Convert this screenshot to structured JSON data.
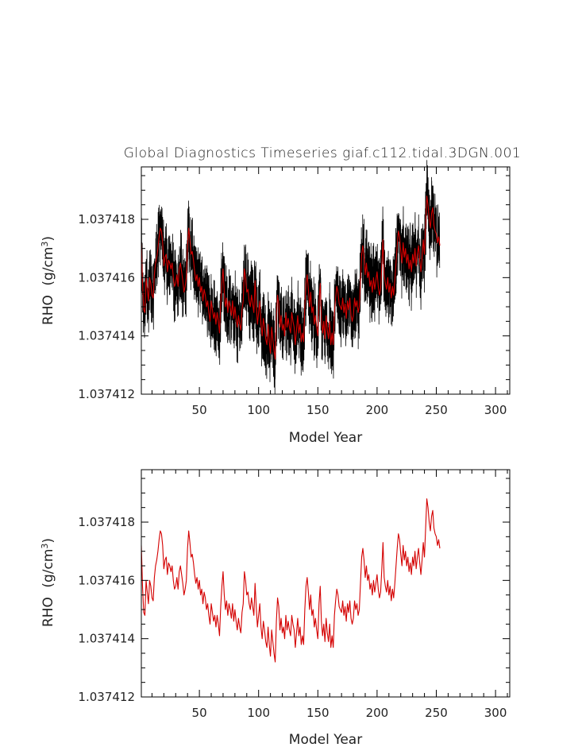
{
  "title": "Global Diagnostics Timeseries giaf.c112.tidal.3DGN.001",
  "chart_data": [
    {
      "type": "line",
      "xlabel": "Model Year",
      "ylabel": "RHO",
      "ylabel_units_base": "(g/cm",
      "ylabel_units_sup": "3",
      "ylabel_units_close": ")",
      "xlim": [
        1,
        312
      ],
      "ylim": [
        1.037412,
        1.0374198
      ],
      "x_ticks": [
        50,
        100,
        150,
        200,
        250,
        300
      ],
      "x_tick_labels": [
        "50",
        "100",
        "150",
        "200",
        "250",
        "300"
      ],
      "y_ticks": [
        1.037412,
        1.037414,
        1.037416,
        1.037418
      ],
      "y_tick_labels": [
        "1.037412",
        "1.037414",
        "1.037416",
        "1.037418"
      ],
      "series": [
        {
          "color": "#000000",
          "kind": "monthly"
        },
        {
          "color": "#d40000",
          "kind": "annual"
        }
      ],
      "annual_x_start": 1,
      "annual_values": [
        1.0374172,
        1.0374158,
        1.0374149,
        1.0374148,
        1.037416,
        1.0374156,
        1.0374152,
        1.037416,
        1.0374158,
        1.0374154,
        1.0374153,
        1.0374161,
        1.0374165,
        1.0374167,
        1.037417,
        1.0374174,
        1.0374177,
        1.0374176,
        1.0374172,
        1.0374164,
        1.0374167,
        1.0374168,
        1.0374162,
        1.0374166,
        1.0374165,
        1.0374163,
        1.0374165,
        1.037416,
        1.0374157,
        1.0374158,
        1.0374161,
        1.0374157,
        1.0374163,
        1.0374165,
        1.0374162,
        1.0374159,
        1.0374155,
        1.0374157,
        1.037416,
        1.0374171,
        1.0374177,
        1.0374173,
        1.0374168,
        1.0374169,
        1.0374166,
        1.0374162,
        1.0374159,
        1.0374161,
        1.0374157,
        1.037416,
        1.0374155,
        1.0374157,
        1.0374152,
        1.0374156,
        1.0374154,
        1.037415,
        1.0374152,
        1.0374148,
        1.0374145,
        1.0374152,
        1.0374149,
        1.0374146,
        1.0374148,
        1.0374144,
        1.0374148,
        1.0374145,
        1.0374141,
        1.0374151,
        1.0374158,
        1.0374163,
        1.0374155,
        1.037415,
        1.0374153,
        1.0374148,
        1.0374152,
        1.037415,
        1.0374147,
        1.0374152,
        1.0374146,
        1.037415,
        1.0374146,
        1.0374143,
        1.0374147,
        1.0374144,
        1.0374142,
        1.0374149,
        1.0374152,
        1.0374163,
        1.037416,
        1.0374155,
        1.0374156,
        1.0374152,
        1.037415,
        1.0374154,
        1.0374151,
        1.0374148,
        1.0374159,
        1.0374151,
        1.0374144,
        1.0374148,
        1.0374152,
        1.0374144,
        1.037414,
        1.0374146,
        1.0374143,
        1.0374139,
        1.0374137,
        1.0374144,
        1.0374138,
        1.0374134,
        1.0374143,
        1.0374139,
        1.0374135,
        1.0374132,
        1.0374146,
        1.0374154,
        1.0374151,
        1.0374143,
        1.0374147,
        1.0374142,
        1.0374144,
        1.037414,
        1.0374148,
        1.0374143,
        1.0374146,
        1.0374143,
        1.0374141,
        1.0374148,
        1.0374145,
        1.0374143,
        1.0374137,
        1.0374142,
        1.0374147,
        1.0374141,
        1.0374144,
        1.0374138,
        1.0374141,
        1.0374138,
        1.037415,
        1.0374158,
        1.0374161,
        1.0374156,
        1.037415,
        1.0374155,
        1.0374148,
        1.037415,
        1.0374144,
        1.0374147,
        1.0374143,
        1.037414,
        1.0374152,
        1.0374158,
        1.0374146,
        1.0374141,
        1.0374145,
        1.0374139,
        1.0374147,
        1.0374142,
        1.0374139,
        1.0374145,
        1.0374137,
        1.0374141,
        1.0374137,
        1.0374148,
        1.0374153,
        1.0374157,
        1.0374155,
        1.0374151,
        1.037415,
        1.0374149,
        1.0374153,
        1.0374148,
        1.0374151,
        1.0374146,
        1.0374152,
        1.0374149,
        1.0374153,
        1.0374147,
        1.0374145,
        1.0374147,
        1.0374153,
        1.037415,
        1.0374152,
        1.0374148,
        1.037415,
        1.0374159,
        1.0374168,
        1.0374171,
        1.0374167,
        1.0374161,
        1.0374165,
        1.037416,
        1.0374162,
        1.0374157,
        1.0374159,
        1.0374155,
        1.037416,
        1.0374156,
        1.0374159,
        1.0374162,
        1.0374157,
        1.0374154,
        1.0374156,
        1.0374164,
        1.0374173,
        1.0374161,
        1.0374158,
        1.0374156,
        1.037416,
        1.0374155,
        1.0374158,
        1.0374153,
        1.0374157,
        1.0374154,
        1.0374159,
        1.0374165,
        1.0374171,
        1.0374176,
        1.0374174,
        1.0374169,
        1.0374165,
        1.0374172,
        1.0374167,
        1.037417,
        1.0374165,
        1.0374168,
        1.0374163,
        1.0374166,
        1.0374162,
        1.0374168,
        1.0374165,
        1.037417,
        1.0374164,
        1.0374168,
        1.0374171,
        1.0374166,
        1.0374162,
        1.0374167,
        1.0374173,
        1.0374168,
        1.0374178,
        1.0374188,
        1.0374185,
        1.037418,
        1.0374177,
        1.0374182,
        1.0374184,
        1.0374178,
        1.0374176,
        1.0374175,
        1.0374172,
        1.0374174,
        1.0374171
      ]
    },
    {
      "type": "line",
      "xlabel": "Model Year",
      "ylabel": "RHO",
      "ylabel_units_base": "(g/cm",
      "ylabel_units_sup": "3",
      "ylabel_units_close": ")",
      "xlim": [
        1,
        312
      ],
      "ylim": [
        1.037412,
        1.0374198
      ],
      "x_ticks": [
        50,
        100,
        150,
        200,
        250,
        300
      ],
      "x_tick_labels": [
        "50",
        "100",
        "150",
        "200",
        "250",
        "300"
      ],
      "y_ticks": [
        1.037412,
        1.037414,
        1.037416,
        1.037418
      ],
      "y_tick_labels": [
        "1.037412",
        "1.037414",
        "1.037416",
        "1.037418"
      ],
      "series": [
        {
          "color": "#d40000",
          "kind": "annual"
        }
      ]
    }
  ]
}
